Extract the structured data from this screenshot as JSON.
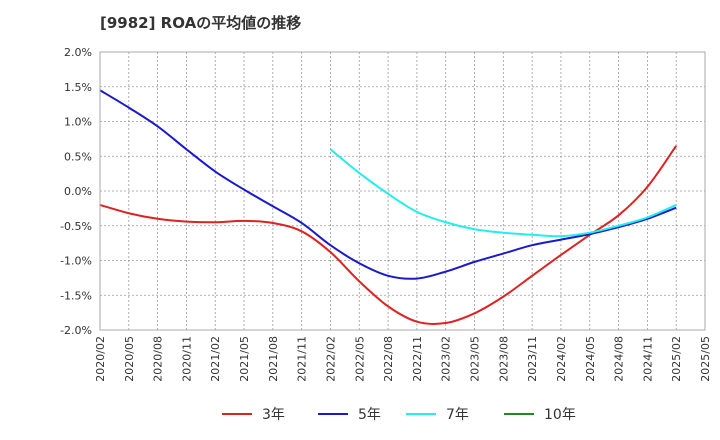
{
  "chart_data": {
    "type": "line",
    "title": "[9982]  ROAの平均値の推移",
    "xlabel": "",
    "ylabel": "",
    "ylim": [
      -2.0,
      2.0
    ],
    "y_ticks": [
      "2.0%",
      "1.5%",
      "1.0%",
      "0.5%",
      "0.0%",
      "-0.5%",
      "-1.0%",
      "-1.5%",
      "-2.0%"
    ],
    "y_tick_values": [
      2.0,
      1.5,
      1.0,
      0.5,
      0.0,
      -0.5,
      -1.0,
      -1.5,
      -2.0
    ],
    "x_ticks": [
      "2020/02",
      "2020/05",
      "2020/08",
      "2020/11",
      "2021/02",
      "2021/05",
      "2021/08",
      "2021/11",
      "2022/02",
      "2022/05",
      "2022/08",
      "2022/11",
      "2023/02",
      "2023/05",
      "2023/08",
      "2023/11",
      "2024/02",
      "2024/05",
      "2024/08",
      "2024/11",
      "2025/02",
      "2025/05"
    ],
    "grid": true,
    "legend_position": "bottom",
    "series": [
      {
        "name": "3年",
        "color": "#dd2222",
        "points": [
          [
            "2020/02",
            -0.2
          ],
          [
            "2020/05",
            -0.32
          ],
          [
            "2020/08",
            -0.4
          ],
          [
            "2020/11",
            -0.44
          ],
          [
            "2021/02",
            -0.45
          ],
          [
            "2021/05",
            -0.43
          ],
          [
            "2021/08",
            -0.46
          ],
          [
            "2021/11",
            -0.58
          ],
          [
            "2022/02",
            -0.88
          ],
          [
            "2022/05",
            -1.3
          ],
          [
            "2022/08",
            -1.66
          ],
          [
            "2022/11",
            -1.88
          ],
          [
            "2023/02",
            -1.9
          ],
          [
            "2023/05",
            -1.76
          ],
          [
            "2023/08",
            -1.52
          ],
          [
            "2023/11",
            -1.22
          ],
          [
            "2024/02",
            -0.92
          ],
          [
            "2024/05",
            -0.63
          ],
          [
            "2024/08",
            -0.35
          ],
          [
            "2024/11",
            0.06
          ],
          [
            "2025/02",
            0.65
          ]
        ]
      },
      {
        "name": "5年",
        "color": "#1a1acc",
        "points": [
          [
            "2020/02",
            1.45
          ],
          [
            "2020/05",
            1.2
          ],
          [
            "2020/08",
            0.93
          ],
          [
            "2020/11",
            0.6
          ],
          [
            "2021/02",
            0.28
          ],
          [
            "2021/05",
            0.02
          ],
          [
            "2021/08",
            -0.22
          ],
          [
            "2021/11",
            -0.46
          ],
          [
            "2022/02",
            -0.78
          ],
          [
            "2022/05",
            -1.04
          ],
          [
            "2022/08",
            -1.22
          ],
          [
            "2022/11",
            -1.26
          ],
          [
            "2023/02",
            -1.16
          ],
          [
            "2023/05",
            -1.02
          ],
          [
            "2023/08",
            -0.9
          ],
          [
            "2023/11",
            -0.78
          ],
          [
            "2024/02",
            -0.7
          ],
          [
            "2024/05",
            -0.62
          ],
          [
            "2024/08",
            -0.52
          ],
          [
            "2024/11",
            -0.4
          ],
          [
            "2025/02",
            -0.24
          ]
        ]
      },
      {
        "name": "7年",
        "color": "#22eeee",
        "points": [
          [
            "2022/02",
            0.6
          ],
          [
            "2022/05",
            0.26
          ],
          [
            "2022/08",
            -0.04
          ],
          [
            "2022/11",
            -0.3
          ],
          [
            "2023/02",
            -0.45
          ],
          [
            "2023/05",
            -0.55
          ],
          [
            "2023/08",
            -0.6
          ],
          [
            "2023/11",
            -0.63
          ],
          [
            "2024/02",
            -0.65
          ],
          [
            "2024/05",
            -0.6
          ],
          [
            "2024/08",
            -0.5
          ],
          [
            "2024/11",
            -0.38
          ],
          [
            "2025/02",
            -0.2
          ]
        ]
      },
      {
        "name": "10年",
        "color": "#228822",
        "points": []
      }
    ]
  }
}
